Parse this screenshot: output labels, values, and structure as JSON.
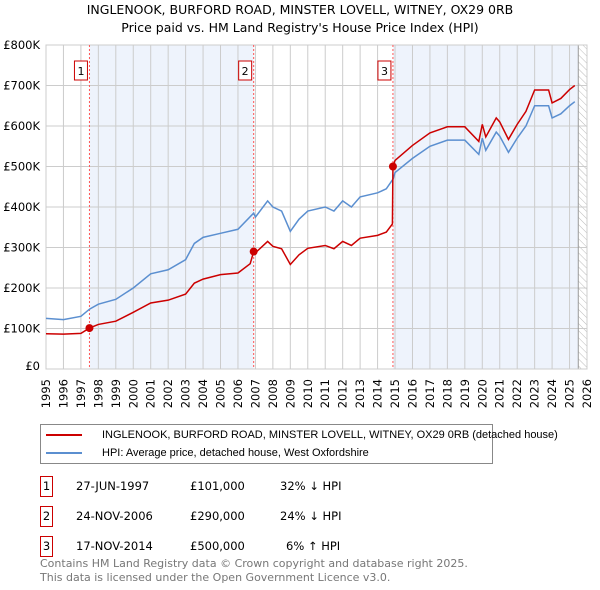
{
  "chart_data": {
    "type": "line",
    "title": "INGLENOOK, BURFORD ROAD, MINSTER LOVELL, WITNEY, OX29 0RB",
    "subtitle": "Price paid vs. HM Land Registry's House Price Index (HPI)",
    "xlim": [
      1995,
      2026
    ],
    "ylim": [
      0,
      800000
    ],
    "x_ticks": [
      "1995",
      "1996",
      "1997",
      "1998",
      "1999",
      "2000",
      "2001",
      "2002",
      "2003",
      "2004",
      "2005",
      "2006",
      "2007",
      "2008",
      "2009",
      "2010",
      "2011",
      "2012",
      "2013",
      "2014",
      "2015",
      "2016",
      "2017",
      "2018",
      "2019",
      "2020",
      "2021",
      "2022",
      "2023",
      "2024",
      "2025",
      "2026"
    ],
    "y_ticks": [
      {
        "v": 0,
        "label": "£0"
      },
      {
        "v": 100000,
        "label": "£100K"
      },
      {
        "v": 200000,
        "label": "£200K"
      },
      {
        "v": 300000,
        "label": "£300K"
      },
      {
        "v": 400000,
        "label": "£400K"
      },
      {
        "v": 500000,
        "label": "£500K"
      },
      {
        "v": 600000,
        "label": "£600K"
      },
      {
        "v": 700000,
        "label": "£700K"
      },
      {
        "v": 800000,
        "label": "£800K"
      }
    ],
    "grid": true,
    "series": [
      {
        "name": "INGLENOOK, BURFORD ROAD, MINSTER LOVELL, WITNEY, OX29 0RB (detached house)",
        "color": "#cc0000",
        "x": [
          1995,
          1996,
          1997,
          1997.49,
          1998,
          1999,
          2000,
          2001,
          2002,
          2003,
          2003.5,
          2004,
          2005,
          2006,
          2006.7,
          2006.9,
          2007,
          2007.7,
          2008,
          2008.5,
          2009,
          2009.5,
          2010,
          2011,
          2011.5,
          2012,
          2012.5,
          2013,
          2014,
          2014.5,
          2014.85,
          2014.88,
          2015,
          2016,
          2017,
          2018,
          2019,
          2019.8,
          2020,
          2020.2,
          2020.8,
          2021,
          2021.5,
          2022,
          2022.5,
          2023,
          2023.8,
          2024,
          2024.5,
          2025,
          2025.3
        ],
        "y": [
          87000,
          86000,
          88000,
          101000,
          110000,
          118000,
          140000,
          163000,
          170000,
          185000,
          212000,
          222000,
          233000,
          237000,
          260000,
          290000,
          287000,
          315000,
          303000,
          297000,
          258000,
          282000,
          298000,
          305000,
          297000,
          315000,
          305000,
          323000,
          330000,
          338000,
          358000,
          500000,
          515000,
          552000,
          583000,
          598000,
          598000,
          562000,
          604000,
          573000,
          620000,
          610000,
          567000,
          604000,
          636000,
          689000,
          689000,
          657000,
          668000,
          690000,
          700000
        ]
      },
      {
        "name": "HPI: Average price, detached house, West Oxfordshire",
        "color": "#5b8fd0",
        "x": [
          1995,
          1996,
          1997,
          1997.5,
          1998,
          1999,
          2000,
          2001,
          2002,
          2003,
          2003.5,
          2004,
          2005,
          2006,
          2006.9,
          2007,
          2007.7,
          2008,
          2008.5,
          2009,
          2009.5,
          2010,
          2011,
          2011.5,
          2012,
          2012.5,
          2013,
          2014,
          2014.5,
          2014.9,
          2015,
          2016,
          2017,
          2018,
          2019,
          2019.8,
          2020,
          2020.2,
          2020.8,
          2021,
          2021.5,
          2022,
          2022.5,
          2023,
          2023.8,
          2024,
          2024.5,
          2025,
          2025.3
        ],
        "y": [
          125000,
          122000,
          130000,
          148000,
          160000,
          172000,
          200000,
          235000,
          245000,
          270000,
          310000,
          325000,
          335000,
          345000,
          385000,
          375000,
          415000,
          400000,
          390000,
          340000,
          370000,
          390000,
          400000,
          390000,
          415000,
          400000,
          425000,
          435000,
          445000,
          470000,
          485000,
          520000,
          550000,
          565000,
          565000,
          530000,
          570000,
          540000,
          585000,
          575000,
          535000,
          570000,
          600000,
          650000,
          650000,
          620000,
          630000,
          650000,
          660000
        ]
      }
    ],
    "sales": [
      {
        "label": "1",
        "x": 1997.49,
        "y": 101000,
        "date": "27-JUN-1997",
        "price": "£101,000",
        "hpi": "32% ↓ HPI"
      },
      {
        "label": "2",
        "x": 2006.9,
        "y": 290000,
        "date": "24-NOV-2006",
        "price": "£290,000",
        "hpi": "24% ↓ HPI"
      },
      {
        "label": "3",
        "x": 2014.88,
        "y": 500000,
        "date": "17-NOV-2014",
        "price": "£500,000",
        "hpi": "6% ↑ HPI"
      }
    ],
    "data_end": 2025.5
  },
  "footer": {
    "line1": "Contains HM Land Registry data © Crown copyright and database right 2025.",
    "line2": "This data is licensed under the Open Government Licence v3.0."
  }
}
